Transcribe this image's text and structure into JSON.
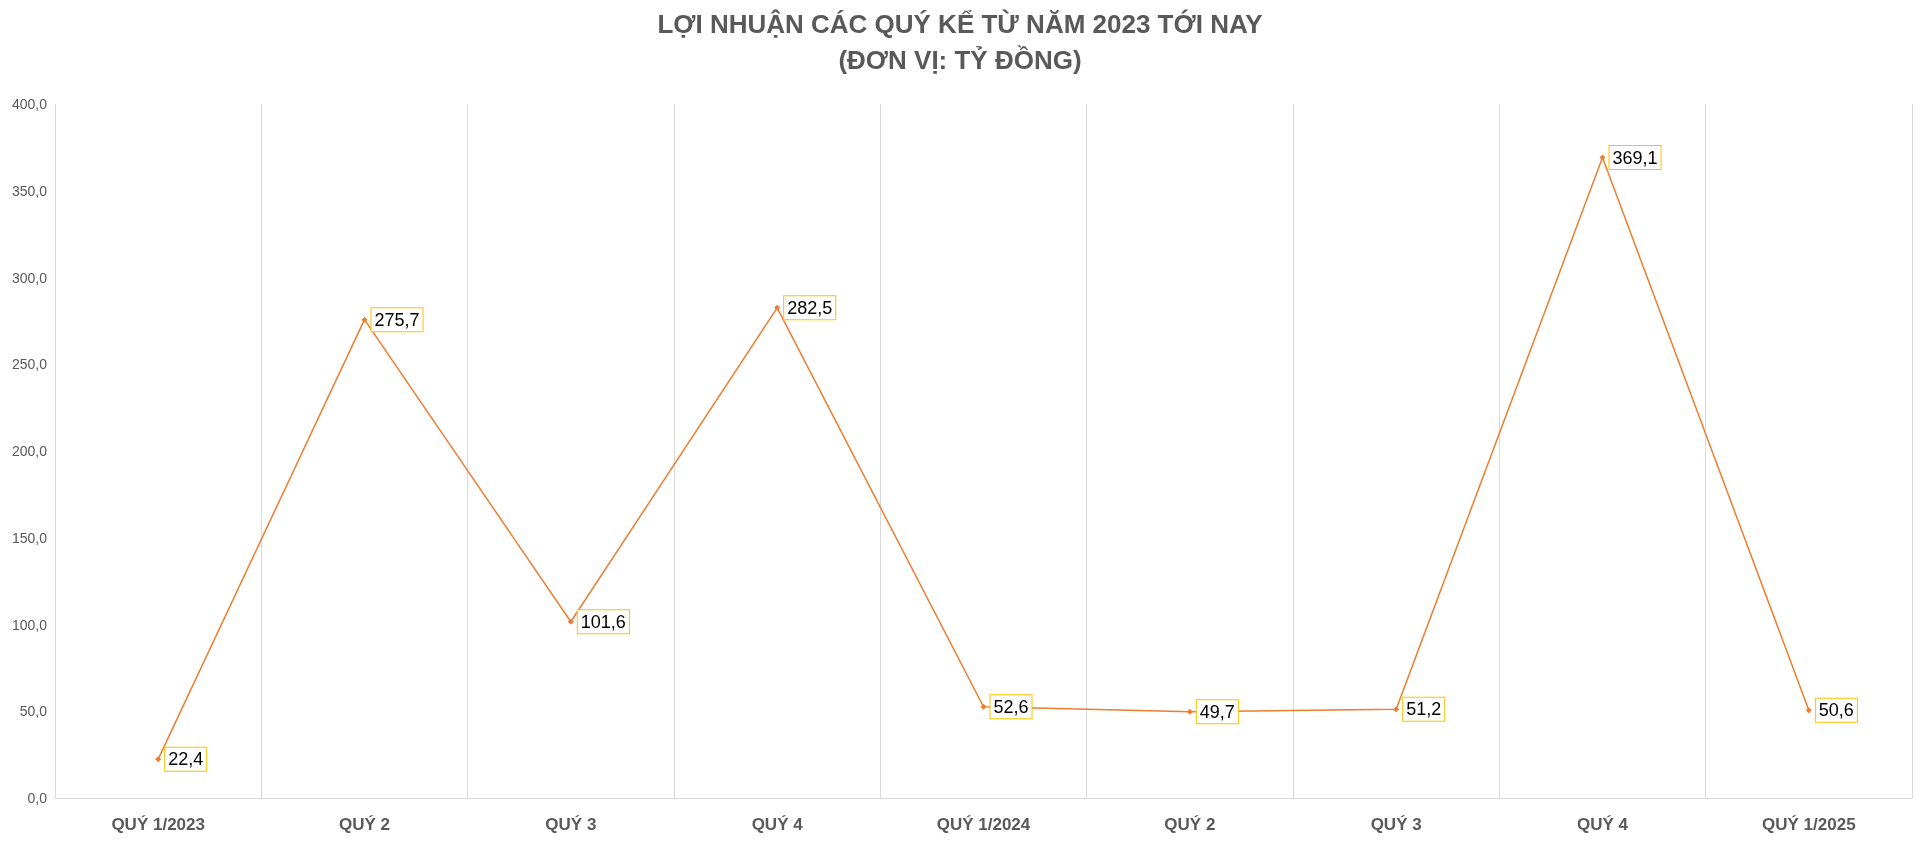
{
  "chart_data": {
    "type": "line",
    "title": "LỢI NHUẬN CÁC QUÝ KỂ TỪ NĂM 2023 TỚI NAY",
    "subtitle": "(ĐƠN VỊ: TỶ ĐỒNG)",
    "categories": [
      "QUÝ 1/2023",
      "QUÝ 2",
      "QUÝ 3",
      "QUÝ 4",
      "QUÝ 1/2024",
      "QUÝ 2",
      "QUÝ 3",
      "QUÝ 4",
      "QUÝ 1/2025"
    ],
    "series": [
      {
        "color": "#ed7d31",
        "values": [
          22.4,
          275.7,
          101.6,
          282.5,
          52.6,
          49.7,
          51.2,
          369.1,
          50.6
        ],
        "value_labels": [
          "22,4",
          "275,7",
          "101,6",
          "282,5",
          "52,6",
          "49,7",
          "51,2",
          "369,1",
          "50,6"
        ]
      }
    ],
    "ylim": [
      0,
      400
    ],
    "yticks": [
      {
        "value": 0,
        "label": "0,0"
      },
      {
        "value": 50,
        "label": "50,0"
      },
      {
        "value": 100,
        "label": "100,0"
      },
      {
        "value": 150,
        "label": "150,0"
      },
      {
        "value": 200,
        "label": "200,0"
      },
      {
        "value": 250,
        "label": "250,0"
      },
      {
        "value": 300,
        "label": "300,0"
      },
      {
        "value": 350,
        "label": "350,0"
      },
      {
        "value": 400,
        "label": "400,0"
      }
    ],
    "grid": "x",
    "marker": "diamond",
    "line_style": "solid"
  }
}
